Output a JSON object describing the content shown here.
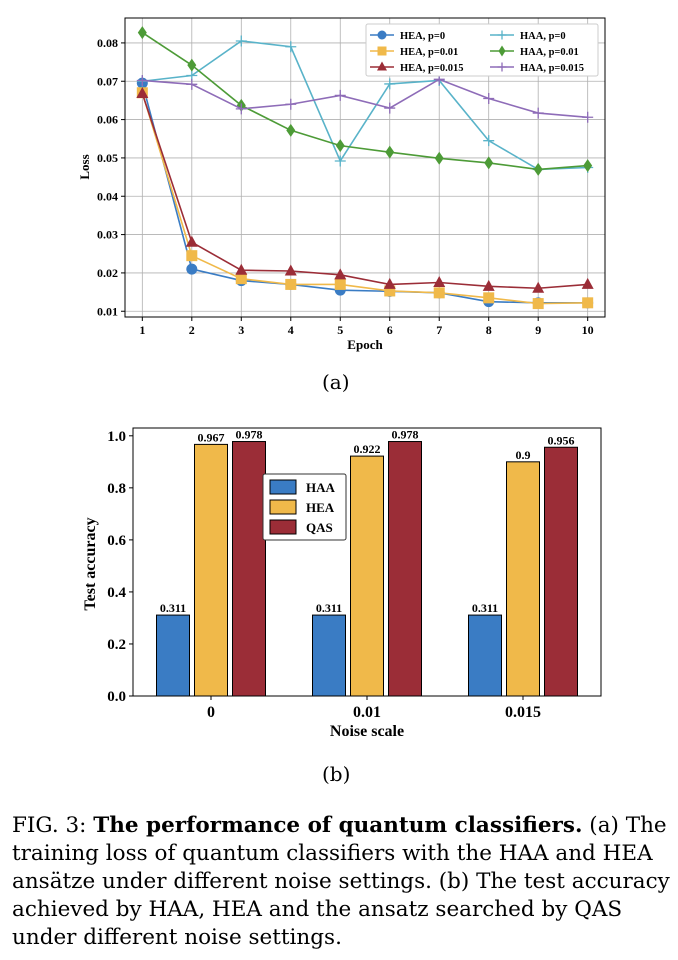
{
  "chart_data": [
    {
      "type": "line",
      "xlabel": "Epoch",
      "ylabel": "Loss",
      "x": [
        1,
        2,
        3,
        4,
        5,
        6,
        7,
        8,
        9,
        10
      ],
      "xlim": [
        0.65,
        10.35
      ],
      "ylim": [
        0.0085,
        0.0865
      ],
      "xticks": [
        "1",
        "2",
        "3",
        "4",
        "5",
        "6",
        "7",
        "8",
        "9",
        "10"
      ],
      "yticks": [
        "0.01",
        "0.02",
        "0.03",
        "0.04",
        "0.05",
        "0.06",
        "0.07",
        "0.08"
      ],
      "ytick_values": [
        0.01,
        0.02,
        0.03,
        0.04,
        0.05,
        0.06,
        0.07,
        0.08
      ],
      "grid": true,
      "legend_position": "top-right",
      "series": [
        {
          "name": "HEA, p=0",
          "color": "#3a7cc4",
          "marker": "circle",
          "values": [
            0.0695,
            0.021,
            0.018,
            0.017,
            0.0155,
            0.0152,
            0.0148,
            0.0125,
            0.0122,
            0.0122
          ]
        },
        {
          "name": "HEA, p=0.01",
          "color": "#f0b94a",
          "marker": "square",
          "values": [
            0.067,
            0.0245,
            0.0185,
            0.017,
            0.017,
            0.0153,
            0.0148,
            0.0135,
            0.012,
            0.0122
          ]
        },
        {
          "name": "HEA, p=0.015",
          "color": "#9b2d37",
          "marker": "triangle",
          "values": [
            0.0668,
            0.028,
            0.0207,
            0.0205,
            0.0195,
            0.017,
            0.0175,
            0.0165,
            0.016,
            0.017
          ]
        },
        {
          "name": "HAA, p=0",
          "color": "#59b3c9",
          "marker": "plus",
          "values": [
            0.07,
            0.0715,
            0.0805,
            0.079,
            0.0492,
            0.0693,
            0.0702,
            0.0545,
            0.047,
            0.0475
          ]
        },
        {
          "name": "HAA, p=0.01",
          "color": "#4d9b37",
          "marker": "diamond",
          "values": [
            0.0827,
            0.0742,
            0.0637,
            0.0572,
            0.0532,
            0.0515,
            0.0499,
            0.0487,
            0.047,
            0.048
          ]
        },
        {
          "name": "HAA, p=0.015",
          "color": "#8e6cb8",
          "marker": "plus",
          "values": [
            0.0702,
            0.0692,
            0.0628,
            0.064,
            0.0663,
            0.063,
            0.0705,
            0.0655,
            0.0617,
            0.0606
          ]
        }
      ]
    },
    {
      "type": "bar",
      "xlabel": "Noise scale",
      "ylabel": "Test accuracy",
      "categories": [
        "0",
        "0.01",
        "0.015"
      ],
      "ylim": [
        0,
        1.03
      ],
      "yticks": [
        "0.0",
        "0.2",
        "0.4",
        "0.6",
        "0.8",
        "1.0"
      ],
      "ytick_values": [
        0,
        0.2,
        0.4,
        0.6,
        0.8,
        1.0
      ],
      "legend_position": "upper-left",
      "series": [
        {
          "name": "HAA",
          "color": "#3a7cc4",
          "values": [
            0.311,
            0.311,
            0.311
          ],
          "labels": [
            "0.311",
            "0.311",
            "0.311"
          ]
        },
        {
          "name": "HEA",
          "color": "#f0b94a",
          "values": [
            0.967,
            0.922,
            0.9
          ],
          "labels": [
            "0.967",
            "0.922",
            "0.9"
          ]
        },
        {
          "name": "QAS",
          "color": "#9b2d37",
          "values": [
            0.978,
            0.978,
            0.956
          ],
          "labels": [
            "0.978",
            "0.978",
            "0.956"
          ]
        }
      ]
    }
  ],
  "subfig_labels": {
    "a": "(a)",
    "b": "(b)"
  },
  "caption": {
    "lead": "FIG. 3: ",
    "bold": "The performance of quantum classifiers.",
    "body": " (a) The training loss of quantum classifiers with the HAA and HEA ansätze under different noise settings. (b) The test accuracy achieved by HAA, HEA and the ansatz searched by QAS under different noise settings."
  }
}
